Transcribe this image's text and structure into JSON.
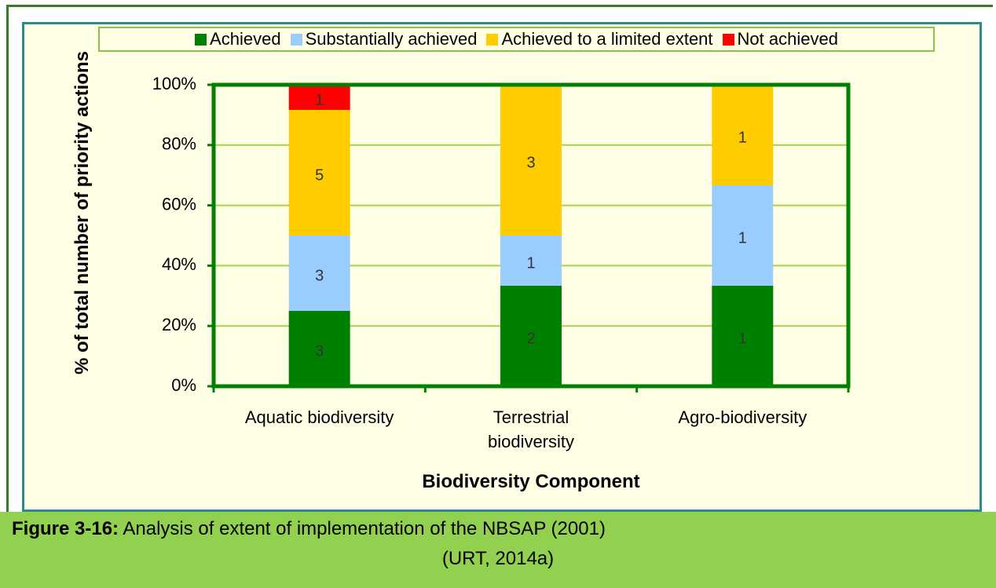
{
  "chart_data": {
    "type": "bar",
    "stacking": "percent",
    "y_label": "% of total number of priority actions",
    "x_label": "Biodiversity Component",
    "categories": [
      "Aquatic biodiversity",
      "Terrestrial biodiversity",
      "Agro-biodiversity"
    ],
    "series": [
      {
        "name": "Achieved",
        "color": "#008000",
        "values": [
          3,
          2,
          1
        ]
      },
      {
        "name": "Substantially achieved",
        "color": "#99ccff",
        "values": [
          3,
          1,
          1
        ]
      },
      {
        "name": "Achieved to a limited extent",
        "color": "#ffcc00",
        "values": [
          5,
          3,
          1
        ]
      },
      {
        "name": "Not achieved",
        "color": "#ff0000",
        "values": [
          1,
          0,
          0
        ]
      }
    ],
    "ylim": [
      0,
      100
    ],
    "yticks": [
      {
        "value": 0,
        "label": "0%"
      },
      {
        "value": 20,
        "label": "20%"
      },
      {
        "value": 40,
        "label": "40%"
      },
      {
        "value": 60,
        "label": "60%"
      },
      {
        "value": 80,
        "label": "80%"
      },
      {
        "value": 100,
        "label": "100%"
      }
    ],
    "grid": true,
    "legend": "top"
  },
  "caption": {
    "label": "Figure 3-16:",
    "text": "Analysis of extent of implementation of the NBSAP (2001)",
    "source": "(URT, 2014a)"
  }
}
